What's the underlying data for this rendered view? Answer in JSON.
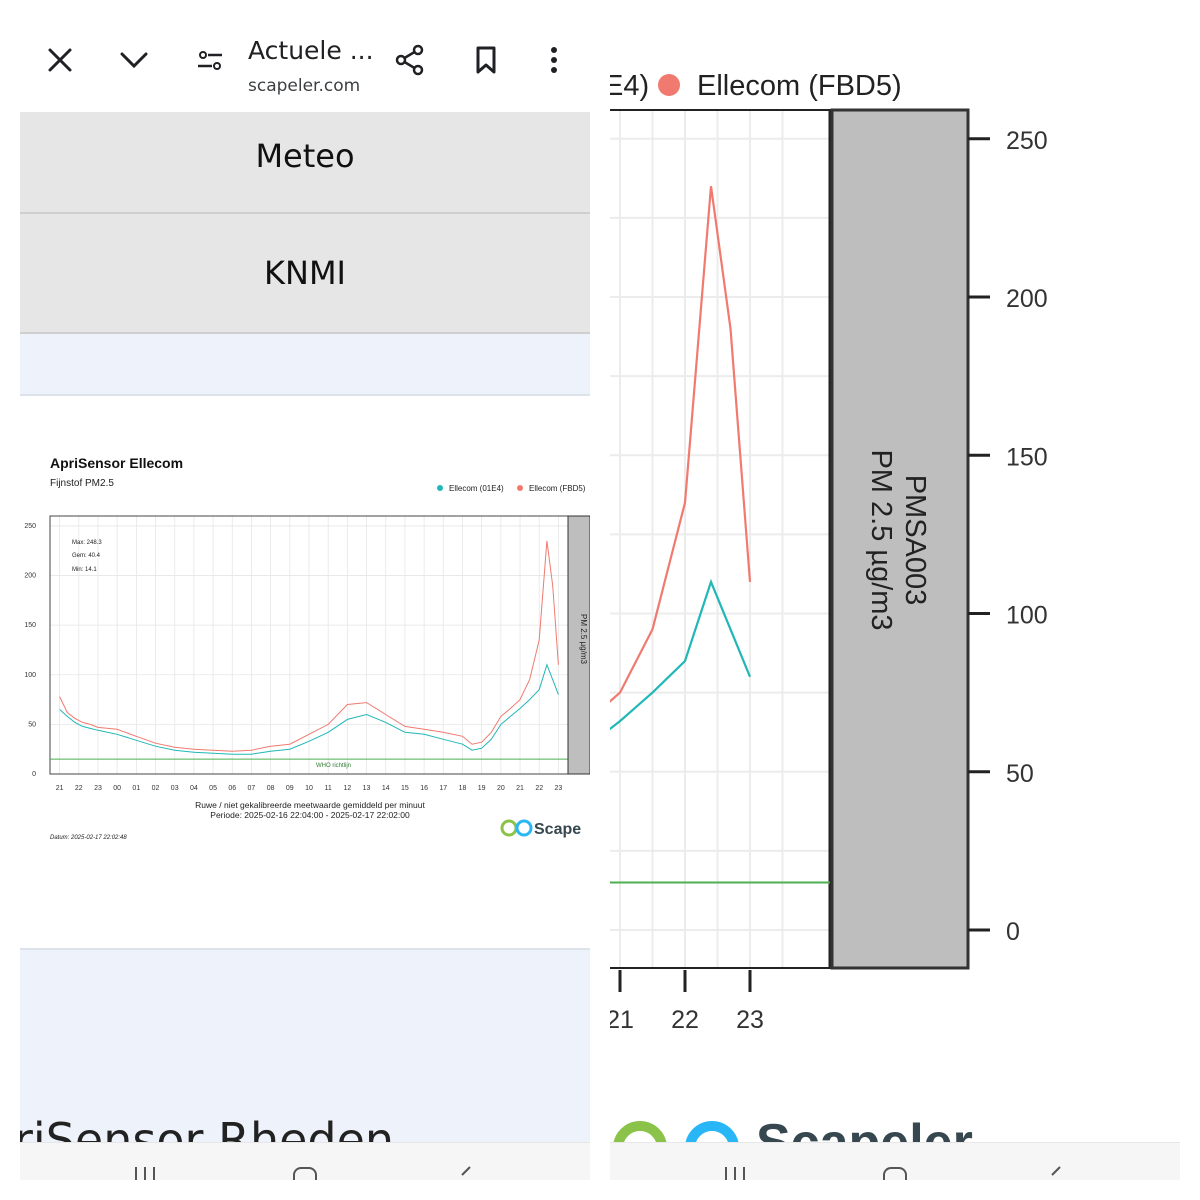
{
  "toolbar": {
    "title": "Actuele ...",
    "url": "scapeler.com",
    "icons": [
      "close-icon",
      "chevron-down-icon",
      "page-settings-icon",
      "share-icon",
      "bookmark-icon",
      "more-vert-icon"
    ]
  },
  "nav": {
    "meteo_label": "Meteo",
    "knmi_label": "KNMI"
  },
  "next_heading": "riSensor Rheden",
  "colors": {
    "series_01E4": "#21b7b7",
    "series_FBD5": "#f07a70",
    "who_line": "#4caf50",
    "panel": "#bebebe"
  },
  "chart": {
    "title": "ApriSensor  Ellecom",
    "subtitle": "Fijnstof PM2.5",
    "stats": {
      "max": "Max: 248.3",
      "gem": "Gem: 40.4",
      "min": "Min: 14.1"
    },
    "who_label": "WHO richtlijn",
    "caption_line1": "Ruwe / niet gekalibreerde meetwaarde gemiddeld per minuut",
    "caption_line2": "Periode: 2025-02-16 22:04:00 - 2025-02-17 22:02:00",
    "datum": "Datum: 2025-02-17 22:02:48",
    "logo_text": "Scape",
    "panel_label": "PM 2.5 µg/m3"
  },
  "zoom": {
    "legend_prefix": "E4)",
    "legend_label": "Ellecom (FBD5)",
    "panel_line1": "PMSA003",
    "panel_line2": "PM 2.5 µg/m3",
    "logo_text": "Scapeler"
  },
  "chart_data": {
    "type": "line",
    "title": "ApriSensor  Ellecom",
    "subtitle": "Fijnstof PM2.5",
    "xlabel": "Ruwe / niet gekalibreerde meetwaarde gemiddeld per minuut",
    "ylabel": "PM 2.5 µg/m3",
    "ylim": [
      0,
      250
    ],
    "yticks": [
      0,
      50,
      100,
      150,
      200,
      250
    ],
    "xticks": [
      "21",
      "22",
      "23",
      "00",
      "01",
      "02",
      "03",
      "04",
      "05",
      "06",
      "07",
      "08",
      "09",
      "10",
      "11",
      "12",
      "13",
      "14",
      "15",
      "16",
      "17",
      "18",
      "19",
      "20",
      "21",
      "22",
      "23"
    ],
    "x_hours": [
      0,
      0.4,
      0.8,
      1.2,
      1.6,
      2,
      3,
      4,
      5,
      6,
      7,
      8,
      9,
      10,
      11,
      12,
      13,
      14,
      15,
      16,
      17,
      18,
      19,
      20,
      21,
      21.5,
      22,
      22.5,
      23,
      23.5,
      24,
      24.5,
      25,
      25.4,
      25.7,
      26
    ],
    "reference_line": {
      "label": "WHO richtlijn",
      "value": 15
    },
    "grid": true,
    "legend": "top-right",
    "series": [
      {
        "name": "Ellecom (01E4)",
        "values": [
          65,
          58,
          52,
          48,
          46,
          44,
          40,
          34,
          28,
          24,
          22,
          21,
          20,
          20,
          23,
          25,
          33,
          42,
          55,
          60,
          52,
          42,
          40,
          35,
          30,
          24,
          26,
          35,
          50,
          58,
          66,
          75,
          85,
          110,
          95,
          80
        ]
      },
      {
        "name": "Ellecom (FBD5)",
        "values": [
          78,
          62,
          56,
          52,
          50,
          47,
          45,
          38,
          31,
          27,
          25,
          24,
          23,
          24,
          28,
          30,
          40,
          50,
          70,
          72,
          60,
          48,
          45,
          42,
          38,
          30,
          32,
          42,
          58,
          66,
          75,
          95,
          135,
          235,
          190,
          110
        ]
      }
    ]
  }
}
